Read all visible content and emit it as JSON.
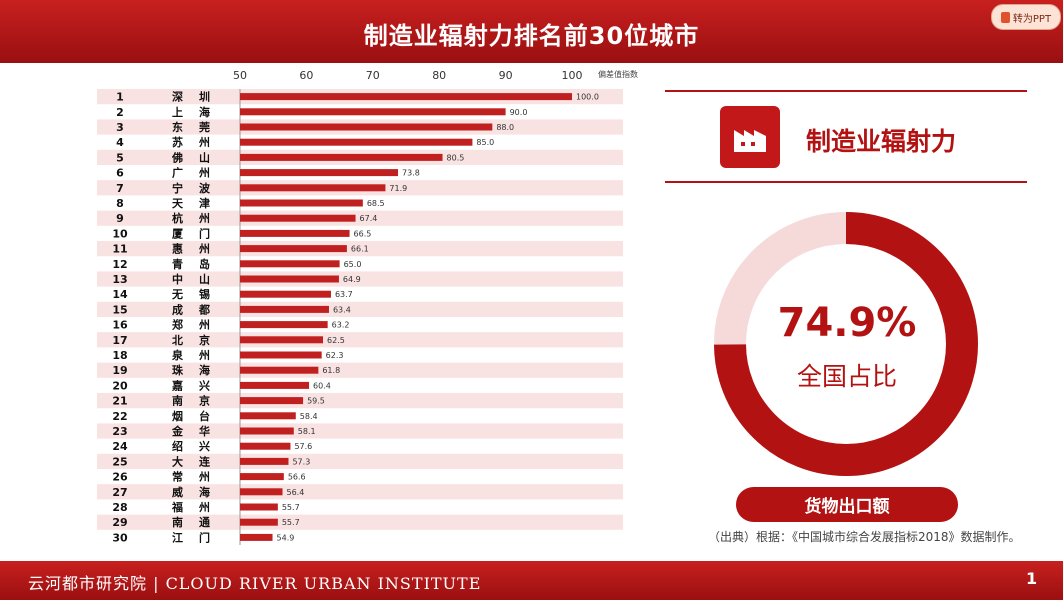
{
  "header": {
    "title": "制造业辐射力排名前30位城市"
  },
  "toolbar": {
    "convert_label": "转为PPT"
  },
  "chart_data": {
    "type": "bar",
    "orientation": "horizontal",
    "unit_label": "偏差值指数",
    "xlim": [
      50,
      100
    ],
    "x_ticks": [
      50,
      60,
      70,
      80,
      90,
      100
    ],
    "ranks": [
      1,
      2,
      3,
      4,
      5,
      6,
      7,
      8,
      9,
      10,
      11,
      12,
      13,
      14,
      15,
      16,
      17,
      18,
      19,
      20,
      21,
      22,
      23,
      24,
      25,
      26,
      27,
      28,
      29,
      30
    ],
    "categories": [
      "深圳",
      "上海",
      "东莞",
      "苏州",
      "佛山",
      "广州",
      "宁波",
      "天津",
      "杭州",
      "厦门",
      "惠州",
      "青岛",
      "中山",
      "无锡",
      "成都",
      "郑州",
      "北京",
      "泉州",
      "珠海",
      "嘉兴",
      "南京",
      "烟台",
      "金华",
      "绍兴",
      "大连",
      "常州",
      "威海",
      "福州",
      "南通",
      "江门"
    ],
    "values": [
      100.0,
      90.0,
      88.0,
      85.0,
      80.5,
      73.8,
      71.9,
      68.5,
      67.4,
      66.5,
      66.1,
      65.0,
      64.9,
      63.7,
      63.4,
      63.2,
      62.5,
      62.3,
      61.8,
      60.4,
      59.5,
      58.4,
      58.1,
      57.6,
      57.3,
      56.6,
      56.4,
      55.7,
      55.7,
      54.9
    ],
    "value_labels": [
      "100.0",
      "90.0",
      "88.0",
      "85.0",
      "80.5",
      "73.8",
      "71.9",
      "68.5",
      "67.4",
      "66.5",
      "66.1",
      "65.0",
      "64.9",
      "63.7",
      "63.4",
      "63.2",
      "62.5",
      "62.3",
      "61.8",
      "60.4",
      "59.5",
      "58.4",
      "58.1",
      "57.6",
      "57.3",
      "56.6",
      "56.4",
      "55.7",
      "55.7",
      "54.9"
    ],
    "bar_color": "#c0201f"
  },
  "summary": {
    "heading": "制造业辐射力",
    "icon": "factory-icon",
    "percent_text": "74.9%",
    "percent_value": 74.9,
    "percent_label": "全国占比",
    "pill_label": "货物出口额",
    "source": "（出典）根据：《中国城市综合发展指标2018》数据制作。"
  },
  "footer": {
    "text": "云河都市研究院 | CLOUD RIVER URBAN INSTITUTE",
    "page": "1"
  },
  "colors": {
    "accent": "#b31212",
    "ring_light": "#f6dada",
    "stripe": "#f8e2e2"
  }
}
